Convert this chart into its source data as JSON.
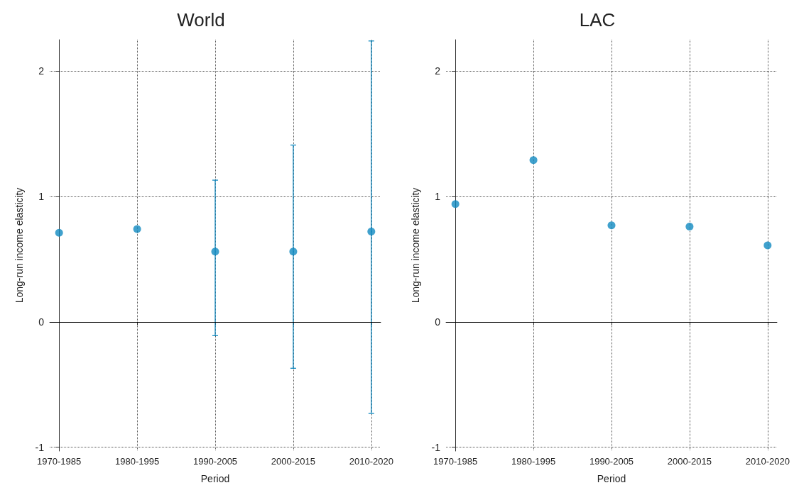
{
  "chart_data": [
    {
      "type": "scatter",
      "title": "World",
      "xlabel": "Period",
      "ylabel": "Long-run income elasticity",
      "categories": [
        "1970-1985",
        "1980-1995",
        "1990-2005",
        "2000-2015",
        "2010-2020"
      ],
      "series": [
        {
          "color": "#1089c0",
          "values": [
            0.71,
            0.74,
            0.56,
            0.56,
            0.72
          ],
          "errors": [
            null,
            null,
            [
              -0.11,
              1.13
            ],
            [
              -0.37,
              1.41
            ],
            [
              -0.73,
              2.24
            ]
          ]
        }
      ],
      "ylim": [
        -1.03,
        2.25
      ],
      "yticks": [
        -1,
        0,
        1,
        2
      ],
      "grid": true,
      "marker": "circle",
      "ref_lines": [
        {
          "axis": "y",
          "value": 0,
          "color": "#000000",
          "line_style": "solid"
        }
      ]
    },
    {
      "type": "scatter",
      "title": "LAC",
      "xlabel": "Period",
      "ylabel": "Long-run income elasticity",
      "categories": [
        "1970-1985",
        "1980-1995",
        "1990-2005",
        "2000-2015",
        "2010-2020"
      ],
      "series": [
        {
          "color": "#1089c0",
          "values": [
            0.94,
            1.29,
            0.77,
            0.76,
            0.61
          ]
        }
      ],
      "ylim": [
        -1.03,
        2.25
      ],
      "yticks": [
        -1,
        0,
        1,
        2
      ],
      "grid": true,
      "marker": "circle",
      "ref_lines": [
        {
          "axis": "y",
          "value": 0,
          "color": "#000000",
          "line_style": "solid"
        }
      ]
    }
  ]
}
